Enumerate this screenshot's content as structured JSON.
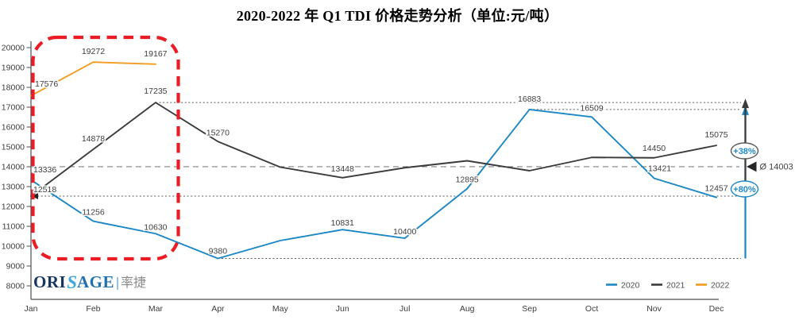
{
  "title": "2020-2022 年 Q1 TDI 价格走势分析（单位:元/吨）",
  "watermark": {
    "prefix": "ORI",
    "swirl": "S",
    "suffix": "AGE",
    "cn": "率捷"
  },
  "chart_data": {
    "type": "line",
    "title": "2020-2022 年 Q1 TDI 价格走势分析（单位:元/吨）",
    "xlabel": "",
    "ylabel": "",
    "unit": "元/吨",
    "categories": [
      "Jan",
      "Feb",
      "Mar",
      "Apr",
      "May",
      "Jun",
      "Jul",
      "Aug",
      "Sep",
      "Oct",
      "Nov",
      "Dec"
    ],
    "ylim": [
      8000,
      20000
    ],
    "ytick_step": 1000,
    "grid": false,
    "legend_position": "bottom-right",
    "axis_color": "#4D4D4D",
    "label_color": "#3D3D3D",
    "series": [
      {
        "name": "2020",
        "color": "#1B87C5",
        "values": [
          13336,
          11256,
          10630,
          9380,
          10280,
          10831,
          10400,
          12895,
          16883,
          16509,
          13421,
          12457
        ],
        "labeled": [
          true,
          true,
          true,
          true,
          false,
          true,
          true,
          true,
          true,
          true,
          true,
          true
        ]
      },
      {
        "name": "2021",
        "color": "#3B3B3B",
        "values": [
          12518,
          14878,
          17235,
          15270,
          13980,
          13448,
          13950,
          14300,
          13800,
          14470,
          14450,
          15075
        ],
        "labeled": [
          true,
          true,
          true,
          true,
          false,
          true,
          false,
          false,
          false,
          false,
          true,
          true
        ]
      },
      {
        "name": "2022",
        "color": "#F29B1D",
        "values": [
          17576,
          19272,
          19167
        ],
        "labeled": [
          true,
          true,
          true
        ]
      }
    ],
    "annotations": {
      "average_line": {
        "value": 14003,
        "label": "Ø 14003",
        "style": "dashed",
        "color": "#7F7F7F"
      },
      "reference_dotted_lines": [
        {
          "value": 17235,
          "start_month": "Mar"
        },
        {
          "value": 16883,
          "start_month": "Sep"
        },
        {
          "value": 12518,
          "start_month": "Jan",
          "arrow_at_start": true
        },
        {
          "value": 9380,
          "start_month": "Apr"
        }
      ],
      "range_arrows": [
        {
          "label": "+38%",
          "from": 12518,
          "to": 17235,
          "color": "#3B3B3B",
          "badge_border": "#595959",
          "text_color": "#1E88C7"
        },
        {
          "label": "+80%",
          "from": 9380,
          "to": 16883,
          "color": "#1B87C5",
          "badge_border": "#1B87C5",
          "text_color": "#1E88C7"
        }
      ],
      "q1_highlight": {
        "from_month": "Jan",
        "to_month": "Mar",
        "color": "#EC1C24"
      }
    }
  }
}
